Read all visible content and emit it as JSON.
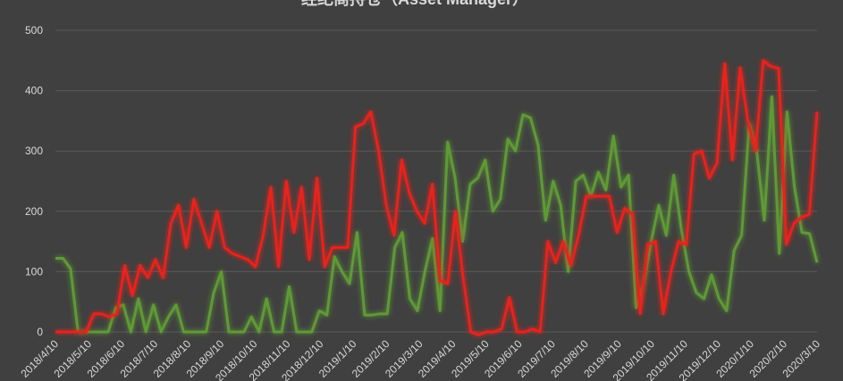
{
  "chart_data": {
    "type": "line",
    "title": "经纪商持仓（Asset Manager）",
    "xlabel": "",
    "ylabel": "",
    "ylim": [
      0,
      500
    ],
    "yticks": [
      0,
      100,
      200,
      300,
      400,
      500
    ],
    "grid": true,
    "x_tick_labels": [
      "2018/4/10",
      "2018/5/10",
      "2018/6/10",
      "2018/7/10",
      "2018/8/10",
      "2018/9/10",
      "2018/10/10",
      "2018/11/10",
      "2018/12/10",
      "2019/1/10",
      "2019/2/10",
      "2019/3/10",
      "2019/4/10",
      "2019/5/10",
      "2019/6/10",
      "2019/7/10",
      "2019/8/10",
      "2019/9/10",
      "2019/10/10",
      "2019/11/10",
      "2019/12/10",
      "2020/1/10",
      "2020/2/10",
      "2020/3/10"
    ],
    "series": [
      {
        "color": "#5e9a35",
        "values": [
          122,
          122,
          105,
          0,
          0,
          0,
          0,
          0,
          40,
          45,
          0,
          55,
          0,
          45,
          0,
          25,
          45,
          0,
          0,
          0,
          0,
          65,
          100,
          0,
          0,
          0,
          25,
          0,
          55,
          0,
          0,
          75,
          0,
          0,
          0,
          35,
          28,
          125,
          100,
          80,
          165,
          28,
          28,
          30,
          30,
          140,
          165,
          55,
          35,
          100,
          155,
          35,
          315,
          255,
          150,
          245,
          255,
          285,
          200,
          220,
          320,
          300,
          360,
          355,
          310,
          185,
          250,
          210,
          100,
          250,
          260,
          225,
          265,
          235,
          325,
          240,
          260,
          40,
          80,
          150,
          210,
          160,
          260,
          170,
          100,
          65,
          55,
          95,
          55,
          35,
          135,
          160,
          345,
          300,
          185,
          390,
          130,
          365,
          240,
          165,
          163,
          115
        ]
      },
      {
        "color": "#e8231b",
        "values": [
          0,
          0,
          0,
          0,
          0,
          30,
          30,
          25,
          30,
          110,
          60,
          110,
          90,
          120,
          90,
          180,
          210,
          140,
          220,
          180,
          140,
          200,
          140,
          130,
          125,
          120,
          108,
          160,
          240,
          108,
          250,
          165,
          240,
          120,
          255,
          108,
          140,
          140,
          140,
          340,
          345,
          365,
          300,
          210,
          160,
          285,
          230,
          200,
          180,
          245,
          85,
          80,
          200,
          90,
          0,
          -5,
          0,
          0,
          5,
          57,
          0,
          0,
          5,
          0,
          150,
          115,
          150,
          110,
          160,
          225,
          225,
          225,
          225,
          165,
          205,
          195,
          30,
          145,
          150,
          30,
          100,
          150,
          145,
          295,
          300,
          255,
          280,
          445,
          285,
          438,
          350,
          300,
          450,
          440,
          437,
          145,
          180,
          190,
          195,
          365
        ]
      }
    ]
  }
}
